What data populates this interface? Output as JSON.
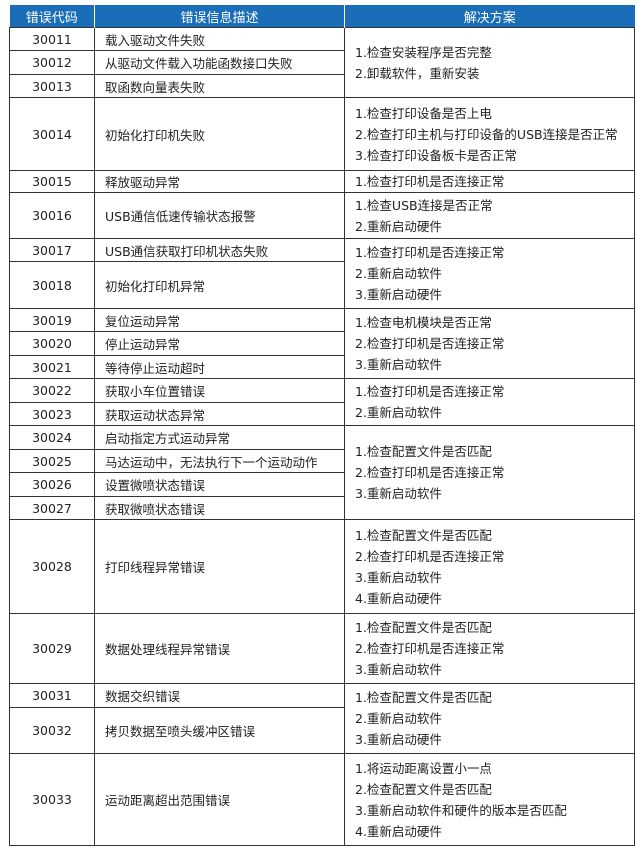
{
  "header": {
    "code": "错误代码",
    "desc": "错误信息描述",
    "solution": "解决方案"
  },
  "rows": [
    {
      "code": "30011",
      "desc": "载入驱动文件失败"
    },
    {
      "code": "30012",
      "desc": "从驱动文件载入功能函数接口失败"
    },
    {
      "code": "30013",
      "desc": "取函数向量表失败"
    },
    {
      "code": "30014",
      "desc": "初始化打印机失败"
    },
    {
      "code": "30015",
      "desc": "释放驱动异常"
    },
    {
      "code": "30016",
      "desc": "USB通信低速传输状态报警"
    },
    {
      "code": "30017",
      "desc": "USB通信获取打印机状态失败"
    },
    {
      "code": "30018",
      "desc": "初始化打印机异常"
    },
    {
      "code": "30019",
      "desc": "复位运动异常"
    },
    {
      "code": "30020",
      "desc": "停止运动异常"
    },
    {
      "code": "30021",
      "desc": "等待停止运动超时"
    },
    {
      "code": "30022",
      "desc": "获取小车位置错误"
    },
    {
      "code": "30023",
      "desc": "获取运动状态异常"
    },
    {
      "code": "30024",
      "desc": "启动指定方式运动异常"
    },
    {
      "code": "30025",
      "desc": "马达运动中，无法执行下一个运动动作"
    },
    {
      "code": "30026",
      "desc": "设置微喷状态错误"
    },
    {
      "code": "30027",
      "desc": "获取微喷状态错误"
    },
    {
      "code": "30028",
      "desc": "打印线程异常错误"
    },
    {
      "code": "30029",
      "desc": "数据处理线程异常错误"
    },
    {
      "code": "30031",
      "desc": "数据交织错误"
    },
    {
      "code": "30032",
      "desc": "拷贝数据至喷头缓冲区错误"
    },
    {
      "code": "30033",
      "desc": "运动距离超出范围错误"
    }
  ],
  "solutions": [
    {
      "rows": 3,
      "lines": [
        "1.检查安装程序是否完整",
        "2.卸载软件，重新安装"
      ]
    },
    {
      "rows": 1,
      "lines": [
        "1.检查打印设备是否上电",
        "2.检查打印主机与打印设备的USB连接是否正常",
        "3.检查打印设备板卡是否正常"
      ]
    },
    {
      "rows": 1,
      "lines": [
        "1.检查打印机是否连接正常"
      ]
    },
    {
      "rows": 1,
      "lines": [
        "1.检查USB连接是否正常",
        "2.重新启动硬件"
      ]
    },
    {
      "rows": 2,
      "lines": [
        "1.检查打印机是否连接正常",
        "2.重新启动软件",
        "3.重新启动硬件"
      ]
    },
    {
      "rows": 3,
      "lines": [
        "1.检查电机模块是否正常",
        "2.检查打印机是否连接正常",
        "3.重新启动软件"
      ]
    },
    {
      "rows": 2,
      "lines": [
        "1.检查打印机是否连接正常",
        "2.重新启动软件"
      ]
    },
    {
      "rows": 4,
      "lines": [
        "1.检查配置文件是否匹配",
        "2.检查打印机是否连接正常",
        "3.重新启动软件"
      ]
    },
    {
      "rows": 1,
      "lines": [
        "1.检查配置文件是否匹配",
        "2.检查打印机是否连接正常",
        "3.重新启动软件",
        "4.重新启动硬件"
      ]
    },
    {
      "rows": 1,
      "lines": [
        "1.检查配置文件是否匹配",
        "2.检查打印机是否连接正常",
        "3.重新启动软件"
      ]
    },
    {
      "rows": 2,
      "lines": [
        "1.检查配置文件是否匹配",
        "2.重新启动软件",
        "3.重新启动硬件"
      ]
    },
    {
      "rows": 1,
      "lines": [
        "1.将运动距离设置小一点",
        "2.检查配置文件是否匹配",
        "3.重新启动软件和硬件的版本是否匹配",
        "4.重新启动硬件"
      ]
    }
  ],
  "colors": {
    "header_bg": "#1a6db7",
    "header_text": "#ffffff",
    "border": "#333333"
  }
}
